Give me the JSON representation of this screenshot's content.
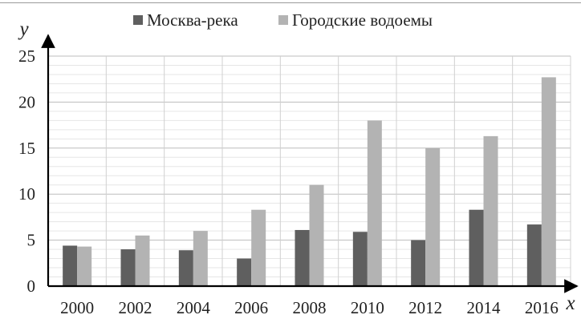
{
  "chart_data": {
    "type": "bar",
    "title": "",
    "xlabel": "x",
    "ylabel": "y",
    "categories": [
      "2000",
      "2002",
      "2004",
      "2006",
      "2008",
      "2010",
      "2012",
      "2014",
      "2016"
    ],
    "series": [
      {
        "name": "Москва-река",
        "color": "#5f5f5f",
        "values": [
          4.4,
          4.0,
          3.9,
          3.0,
          6.1,
          5.9,
          5.0,
          8.3,
          6.7
        ]
      },
      {
        "name": "Городские водоемы",
        "color": "#b3b3b3",
        "values": [
          4.3,
          5.5,
          6.0,
          8.3,
          11.0,
          18.0,
          15.0,
          16.3,
          22.7
        ]
      }
    ],
    "ylim": [
      0,
      25
    ],
    "yticks": [
      "0",
      "5",
      "10",
      "15",
      "20",
      "25"
    ],
    "grid": true,
    "legend_position": "top"
  }
}
